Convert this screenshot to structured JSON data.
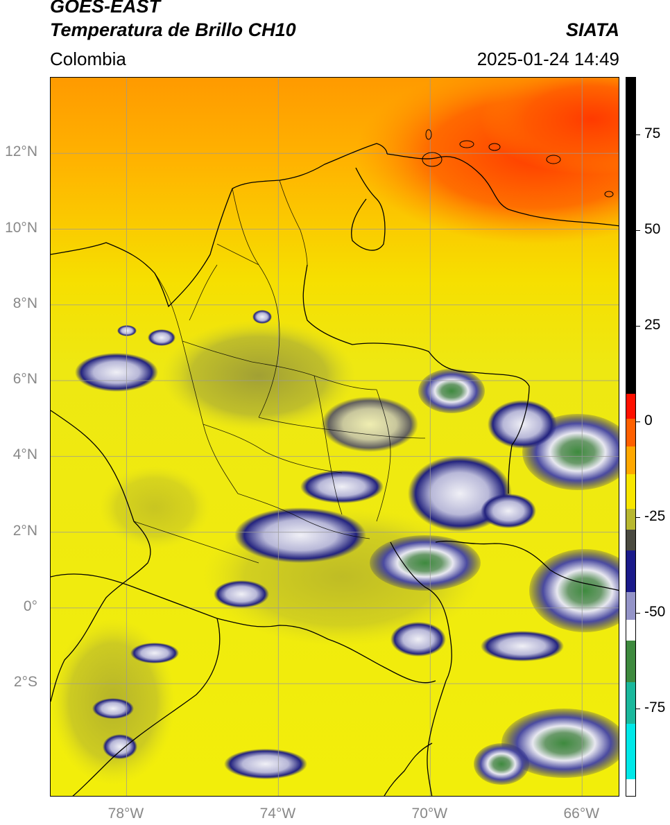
{
  "header": {
    "satellite": "GOES-EAST",
    "product": "Temperatura de Brillo CH10",
    "region": "Colombia",
    "agency": "SIATA",
    "datetime": "2025-01-24 14:49"
  },
  "map": {
    "lon_range": [
      -80,
      -65
    ],
    "lat_range": [
      -5,
      14
    ],
    "lat_ticks": [
      {
        "lat": 12,
        "label": "12°N"
      },
      {
        "lat": 10,
        "label": "10°N"
      },
      {
        "lat": 8,
        "label": "8°N"
      },
      {
        "lat": 6,
        "label": "6°N"
      },
      {
        "lat": 4,
        "label": "4°N"
      },
      {
        "lat": 2,
        "label": "2°N"
      },
      {
        "lat": 0,
        "label": "0°"
      },
      {
        "lat": -2,
        "label": "2°S"
      }
    ],
    "lon_ticks": [
      {
        "lon": -78,
        "label": "78°W"
      },
      {
        "lon": -74,
        "label": "74°W"
      },
      {
        "lon": -70,
        "label": "70°W"
      },
      {
        "lon": -66,
        "label": "66°W"
      }
    ],
    "grid": true,
    "colors": {
      "warm_background": "#f2ea0a",
      "orange": "#ff9a00",
      "red": "#ff3c00",
      "olive": "#9a9a3a",
      "navy": "#1a1a7a",
      "cloud_white": "#e8e8f0",
      "green": "#3e8a3e"
    }
  },
  "colorbar": {
    "range": [
      -98,
      90
    ],
    "ticks": [
      {
        "value": 75,
        "label": "75"
      },
      {
        "value": 50,
        "label": "50"
      },
      {
        "value": 25,
        "label": "25"
      },
      {
        "value": 0,
        "label": "0"
      },
      {
        "value": -25,
        "label": "-25"
      },
      {
        "value": -50,
        "label": "-50"
      },
      {
        "value": -75,
        "label": "-75"
      }
    ]
  }
}
